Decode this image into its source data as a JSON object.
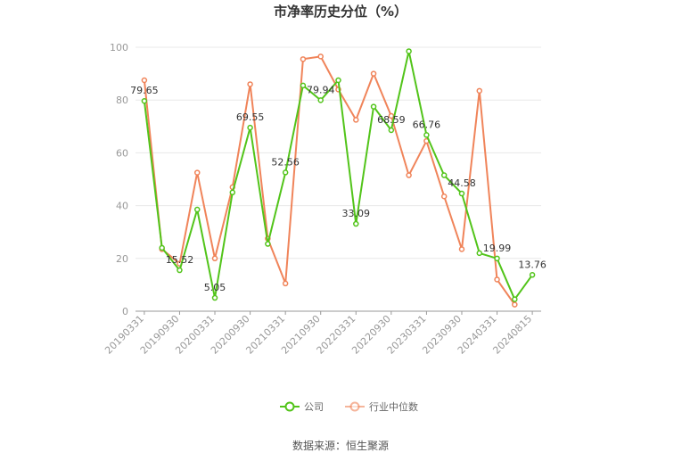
{
  "chart_data": {
    "type": "line",
    "title": "市净率历史分位（%）",
    "xlabel": "",
    "ylabel": "",
    "ylim": [
      0,
      100
    ],
    "yticks": [
      0,
      20,
      40,
      60,
      80,
      100
    ],
    "grid": true,
    "legend_position": "bottom",
    "x": [
      "20190331",
      "20190630",
      "20190930",
      "20191231",
      "20200331",
      "20200630",
      "20200930",
      "20201231",
      "20210331",
      "20210630",
      "20210930",
      "20211231",
      "20220331",
      "20220630",
      "20220930",
      "20221231",
      "20230331",
      "20230630",
      "20230930",
      "20231231",
      "20240331",
      "20240630",
      "20240815"
    ],
    "x_tick_labels": [
      "20190331",
      "20190930",
      "20200331",
      "20200930",
      "20210331",
      "20210930",
      "20220331",
      "20220930",
      "20230331",
      "20230930",
      "20240331",
      "20240815"
    ],
    "series": [
      {
        "name": "公司",
        "color": "#52c41a",
        "values": [
          79.65,
          24.0,
          15.52,
          38.5,
          5.05,
          45.0,
          69.55,
          25.5,
          52.56,
          85.5,
          79.94,
          87.5,
          33.09,
          77.5,
          68.59,
          98.5,
          66.76,
          51.5,
          44.58,
          22.0,
          19.99,
          4.5,
          13.76
        ]
      },
      {
        "name": "行业中位数",
        "color": "#f0845a",
        "values": [
          87.5,
          23.5,
          18.0,
          52.5,
          20.0,
          47.0,
          86.0,
          27.5,
          10.5,
          95.5,
          96.5,
          84.0,
          72.5,
          90.0,
          74.0,
          51.5,
          64.5,
          43.5,
          23.5,
          83.5,
          12.0,
          2.5,
          null
        ]
      }
    ],
    "data_labels": [
      {
        "index": 0,
        "text": "79.65"
      },
      {
        "index": 2,
        "text": "15.52"
      },
      {
        "index": 4,
        "text": "5.05"
      },
      {
        "index": 6,
        "text": "69.55"
      },
      {
        "index": 8,
        "text": "52.56"
      },
      {
        "index": 10,
        "text": "79.94"
      },
      {
        "index": 12,
        "text": "33.09"
      },
      {
        "index": 14,
        "text": "68.59"
      },
      {
        "index": 16,
        "text": "66.76"
      },
      {
        "index": 18,
        "text": "44.58"
      },
      {
        "index": 20,
        "text": "19.99"
      },
      {
        "index": 22,
        "text": "13.76"
      }
    ]
  },
  "footer": {
    "source": "数据来源：恒生聚源"
  }
}
